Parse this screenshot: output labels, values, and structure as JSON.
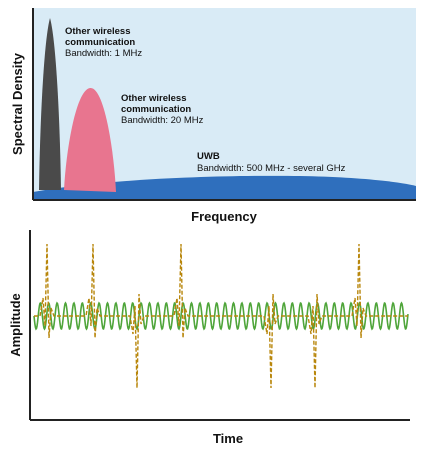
{
  "colors": {
    "spectrum_bg": "#d9ebf6",
    "narrow_band": "#4a4a4a",
    "mid_band": "#e8758f",
    "uwb": "#2f6fbd",
    "sine_wave": "#4fa53a",
    "pulse_train": "#b8860b"
  },
  "top": {
    "ylabel": "Spectral Density",
    "xlabel": "Frequency",
    "signals": [
      {
        "name": "Other wireless",
        "name2": "communication",
        "bandwidth": "Bandwidth: 1 MHz"
      },
      {
        "name": "Other wireless",
        "name2": "communication",
        "bandwidth": "Bandwidth: 20 MHz"
      },
      {
        "name": "UWB",
        "bandwidth": "Bandwidth: 500 MHz - several GHz"
      }
    ]
  },
  "bottom": {
    "ylabel": "Amplitude",
    "xlabel": "Time"
  }
}
